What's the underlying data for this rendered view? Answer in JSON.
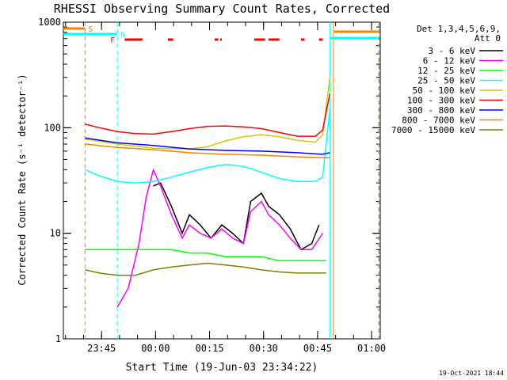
{
  "chart_data": {
    "type": "line",
    "title": "RHESSI Observing Summary Count Rates, Corrected",
    "xlabel": "Start Time (19-Jun-03 23:34:22)",
    "ylabel": "Corrected Count Rate (s⁻¹ detector⁻¹)",
    "footer": "19-Oct-2021 18:44",
    "y_scale": "log",
    "ylim": [
      1,
      1000
    ],
    "xlim_minutes_after_start": [
      0,
      88
    ],
    "y_ticks": [
      "1",
      "10",
      "100",
      "1000"
    ],
    "x_ticks": [
      {
        "label": "23:45",
        "minutes": 10.6
      },
      {
        "label": "00:00",
        "minutes": 25.6
      },
      {
        "label": "00:15",
        "minutes": 40.6
      },
      {
        "label": "00:30",
        "minutes": 55.6
      },
      {
        "label": "00:45",
        "minutes": 70.6
      },
      {
        "label": "01:00",
        "minutes": 85.6
      }
    ],
    "legend": {
      "placement": "right",
      "header": [
        "Det 1,3,4,5,6,9,",
        "Att 0"
      ]
    },
    "series": [
      {
        "name": "3 - 6 keV",
        "color": "#000000",
        "x": [
          25,
          27,
          30,
          33,
          35,
          38,
          41,
          44,
          47,
          50,
          52,
          55,
          57,
          60,
          63,
          66,
          69,
          71
        ],
        "y": [
          28,
          30,
          18,
          10,
          15,
          12,
          9,
          12,
          10,
          8,
          20,
          24,
          18,
          15,
          11,
          7,
          8,
          12
        ]
      },
      {
        "name": "6 - 12 keV",
        "color": "#ff00ff",
        "x": [
          15,
          18,
          21,
          23,
          25,
          27,
          30,
          33,
          35,
          38,
          41,
          44,
          47,
          50,
          52,
          55,
          57,
          60,
          63,
          66,
          69,
          72
        ],
        "y": [
          2,
          3,
          8,
          22,
          40,
          28,
          15,
          9,
          12,
          10,
          9,
          11,
          9,
          8,
          16,
          20,
          15,
          12,
          9,
          7,
          7,
          10
        ]
      },
      {
        "name": "12 - 25 keV",
        "color": "#00ff00",
        "x": [
          6,
          10,
          15,
          20,
          25,
          30,
          35,
          40,
          45,
          50,
          55,
          60,
          65,
          70,
          73
        ],
        "y": [
          7,
          7,
          7,
          7,
          7,
          7,
          6.5,
          6.5,
          6,
          6,
          6,
          5.5,
          5.5,
          5.5,
          5.5
        ]
      },
      {
        "name": "25 - 50 keV",
        "color": "#00ffff",
        "x": [
          6,
          10,
          15,
          20,
          25,
          30,
          35,
          40,
          45,
          50,
          55,
          60,
          65,
          70,
          72,
          74
        ],
        "y": [
          40,
          35,
          31,
          30,
          31,
          34,
          38,
          42,
          45,
          43,
          38,
          33,
          31,
          31,
          34,
          150
        ]
      },
      {
        "name": "50 - 100 keV",
        "color": "#cccc00",
        "x": [
          6,
          15,
          25,
          35,
          40,
          45,
          50,
          55,
          60,
          65,
          70,
          72,
          74
        ],
        "y": [
          78,
          70,
          64,
          63,
          66,
          75,
          82,
          86,
          82,
          76,
          73,
          85,
          300
        ]
      },
      {
        "name": "100 - 300 keV",
        "color": "#ff0000",
        "x": [
          6,
          10,
          15,
          20,
          25,
          30,
          35,
          40,
          45,
          50,
          55,
          60,
          65,
          70,
          72,
          74
        ],
        "y": [
          108,
          100,
          92,
          88,
          87,
          92,
          98,
          103,
          104,
          102,
          98,
          90,
          83,
          83,
          95,
          210
        ]
      },
      {
        "name": "300 - 800 keV",
        "color": "#0000ff",
        "x": [
          6,
          15,
          25,
          35,
          45,
          55,
          65,
          72,
          74
        ],
        "y": [
          80,
          72,
          68,
          63,
          61,
          60,
          58,
          56,
          58
        ]
      },
      {
        "name": "800 - 7000 keV",
        "color": "#ff8000",
        "x": [
          6,
          15,
          25,
          35,
          45,
          55,
          65,
          72,
          74
        ],
        "y": [
          70,
          65,
          62,
          58,
          56,
          55,
          53,
          52,
          52
        ]
      },
      {
        "name": "7000 - 15000 keV",
        "color": "#808000",
        "x": [
          6,
          10,
          15,
          20,
          25,
          30,
          35,
          40,
          45,
          50,
          55,
          60,
          65,
          70,
          73
        ],
        "y": [
          4.5,
          4.2,
          4,
          4,
          4.5,
          4.8,
          5,
          5.2,
          5,
          4.8,
          4.5,
          4.3,
          4.2,
          4.2,
          4.2
        ]
      }
    ],
    "state_bars": [
      {
        "label": "S",
        "color": "#ff8000",
        "x_minutes": [
          0,
          6
        ],
        "level": 1.0
      },
      {
        "label": "N",
        "color": "#00ffff",
        "x_minutes": [
          0,
          15
        ],
        "level": 0.8
      },
      {
        "label": "F",
        "color": "#ff0000",
        "segments": [
          [
            17,
            22
          ],
          [
            29,
            30.5
          ],
          [
            42,
            43
          ],
          [
            43.5,
            44
          ],
          [
            53,
            56
          ],
          [
            57,
            60
          ],
          [
            66,
            67
          ],
          [
            71,
            72
          ]
        ],
        "level": 0.6
      }
    ],
    "vertical_markers": [
      {
        "color": "#ff8000",
        "style": "dashed",
        "x_minutes": 6
      },
      {
        "color": "#00ffff",
        "style": "dashed",
        "x_minutes": 15
      },
      {
        "color": "#00ffff",
        "style": "solid",
        "x_minutes": 74
      },
      {
        "color": "#ff8000",
        "style": "solid",
        "x_minutes": 75
      },
      {
        "color": "#00ffff",
        "style": "dashed",
        "x_minutes": 87.5
      },
      {
        "color": "#ff8000",
        "style": "dashed",
        "x_minutes": 87.8
      }
    ],
    "grid": false
  }
}
